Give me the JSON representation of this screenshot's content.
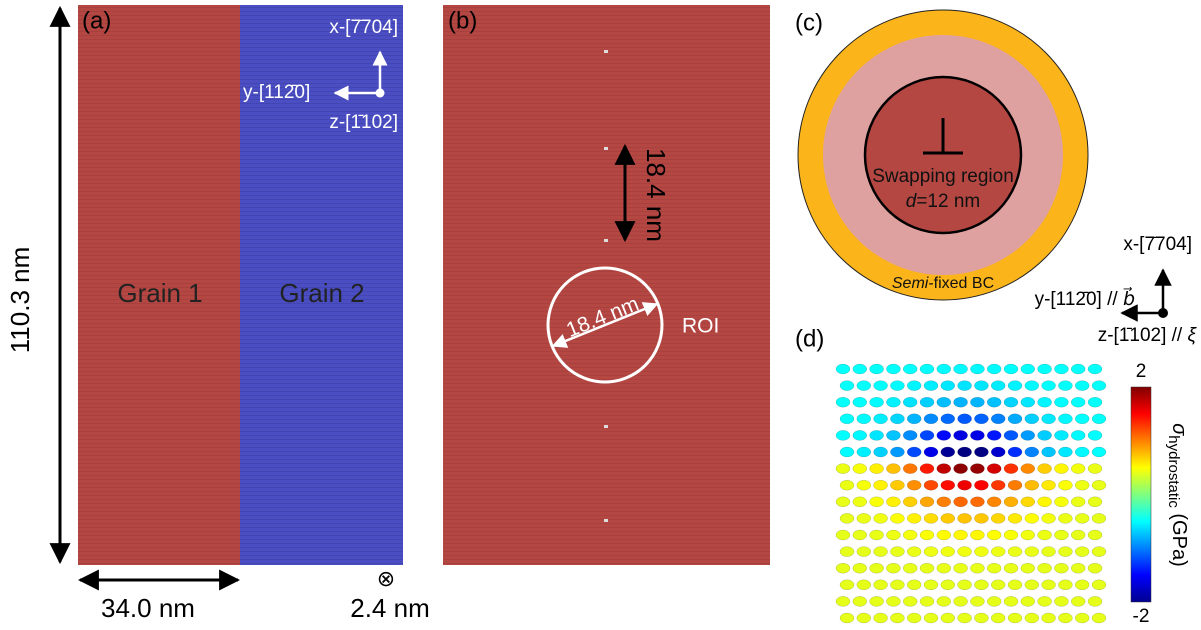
{
  "panel_a": {
    "label": "(a)",
    "height_label": "110.3 nm",
    "width_label": "34.0 nm",
    "out_of_plane_symbol": "⊗",
    "thickness_label": "2.4 nm",
    "grain_1": "Grain 1",
    "grain_2": "Grain 2",
    "axis_x": "x-[7̄704]",
    "axis_y": "y-[112̄0]",
    "axis_z": "z-[1̄102]"
  },
  "panel_b": {
    "label": "(b)",
    "spacing_label": "18.4 nm",
    "diameter_label": "18.4 nm",
    "roi_label": "ROI"
  },
  "panel_c": {
    "label": "(c)",
    "region_label": "Swapping region",
    "diameter_var": "d",
    "diameter_value": "=12 nm",
    "bc_italic": "Semi",
    "bc_rest": "-fixed BC",
    "axis_x": "x-[7̄704]",
    "axis_y": "y-[112̄0] // ",
    "axis_y_vector": "b⃗",
    "axis_z": "z-[1̄102] // ",
    "axis_z_symbol": "ξ"
  },
  "panel_d": {
    "label": "(d)",
    "colorbar_max": "2",
    "colorbar_min": "-2",
    "colorbar_symbol": "σ",
    "colorbar_subscript": "hydrostatic",
    "colorbar_unit": " (GPa)"
  }
}
